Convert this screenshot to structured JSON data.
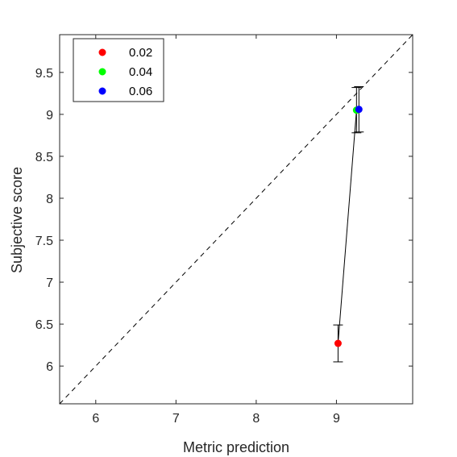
{
  "chart_data": {
    "type": "scatter",
    "xlabel": "Metric prediction",
    "ylabel": "Subjective score",
    "xlim": [
      5.55,
      9.95
    ],
    "ylim": [
      5.55,
      9.95
    ],
    "xticks": [
      6,
      7,
      8,
      9
    ],
    "yticks": [
      6,
      6.5,
      7,
      7.5,
      8,
      8.5,
      9,
      9.5
    ],
    "xtick_labels": [
      "6",
      "7",
      "8",
      "9"
    ],
    "ytick_labels": [
      "6",
      "6.5",
      "7",
      "7.5",
      "8",
      "8.5",
      "9",
      "9.5"
    ],
    "grid": false,
    "diagonal_reference": true,
    "connecting_line": true,
    "legend_position": "top-left",
    "series": [
      {
        "name": "0.02",
        "color": "#ff0000",
        "x": 9.02,
        "y": 6.27,
        "y_low": 6.05,
        "y_high": 6.49
      },
      {
        "name": "0.04",
        "color": "#00ff00",
        "x": 9.25,
        "y": 9.05,
        "y_low": 8.78,
        "y_high": 9.32
      },
      {
        "name": "0.06",
        "color": "#0000ff",
        "x": 9.28,
        "y": 9.06,
        "y_low": 8.79,
        "y_high": 9.33
      }
    ]
  }
}
